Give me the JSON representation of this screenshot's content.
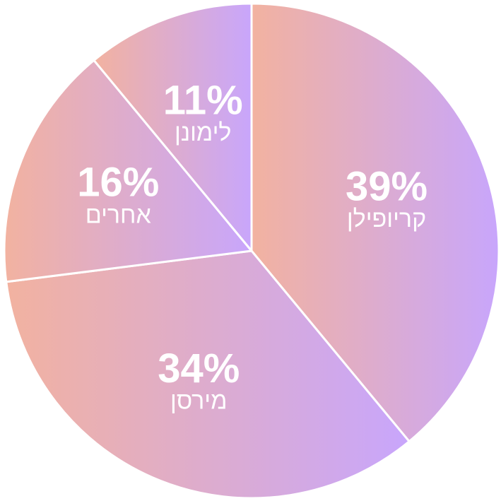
{
  "chart_data": {
    "type": "pie",
    "categories": [
      "קריופילן",
      "מירסן",
      "אחרים",
      "לימונן"
    ],
    "values": [
      39,
      34,
      16,
      11
    ],
    "value_labels": [
      "39%",
      "34%",
      "16%",
      "11%"
    ],
    "gradient": [
      "#f2b2a0",
      "#c8a6fc"
    ]
  }
}
